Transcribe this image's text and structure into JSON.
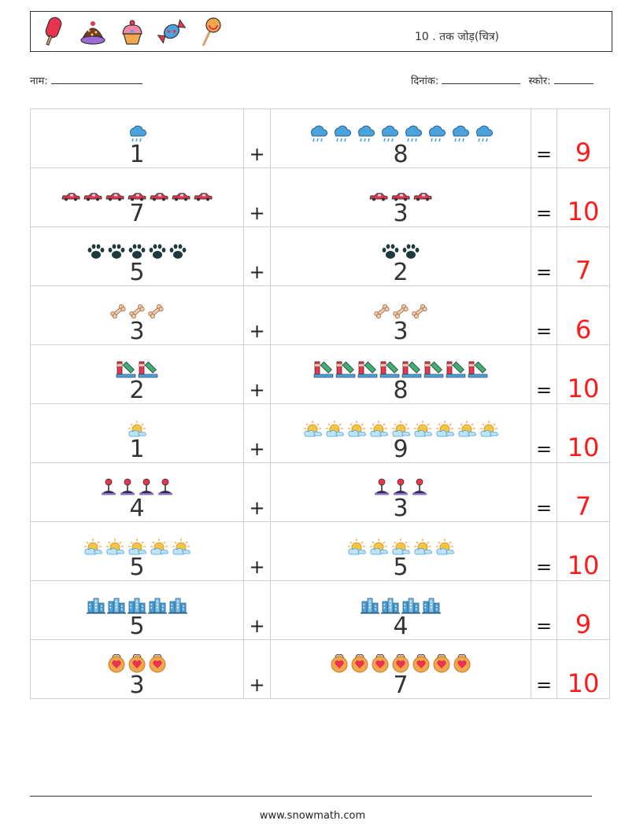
{
  "header": {
    "title": "10 . तक जोड़(चित्र)",
    "icons": [
      "popsicle-icon",
      "cake-icon",
      "cupcake-icon",
      "candy-icon",
      "lollipop-icon"
    ]
  },
  "meta": {
    "name_label": "नाम:",
    "date_label": "दिनांक:",
    "score_label": "स्कोर:"
  },
  "symbols": {
    "plus": "+",
    "equals": "="
  },
  "colors": {
    "answer": "#ff1a1a",
    "grid": "#cfcfcf"
  },
  "rows": [
    {
      "a": 1,
      "b": 8,
      "ans": 9,
      "icon": "rain-cloud-icon"
    },
    {
      "a": 7,
      "b": 3,
      "ans": 10,
      "icon": "car-icon"
    },
    {
      "a": 5,
      "b": 2,
      "ans": 7,
      "icon": "paw-icon"
    },
    {
      "a": 3,
      "b": 3,
      "ans": 6,
      "icon": "bone-icon"
    },
    {
      "a": 2,
      "b": 8,
      "ans": 10,
      "icon": "paint-tools-icon"
    },
    {
      "a": 1,
      "b": 9,
      "ans": 10,
      "icon": "sun-cloud-icon"
    },
    {
      "a": 4,
      "b": 3,
      "ans": 7,
      "icon": "joystick-icon"
    },
    {
      "a": 5,
      "b": 5,
      "ans": 10,
      "icon": "sun-cloud-icon"
    },
    {
      "a": 5,
      "b": 4,
      "ans": 9,
      "icon": "buildings-icon"
    },
    {
      "a": 3,
      "b": 7,
      "ans": 10,
      "icon": "heart-badge-icon"
    }
  ],
  "footer": {
    "url": "www.snowmath.com"
  }
}
